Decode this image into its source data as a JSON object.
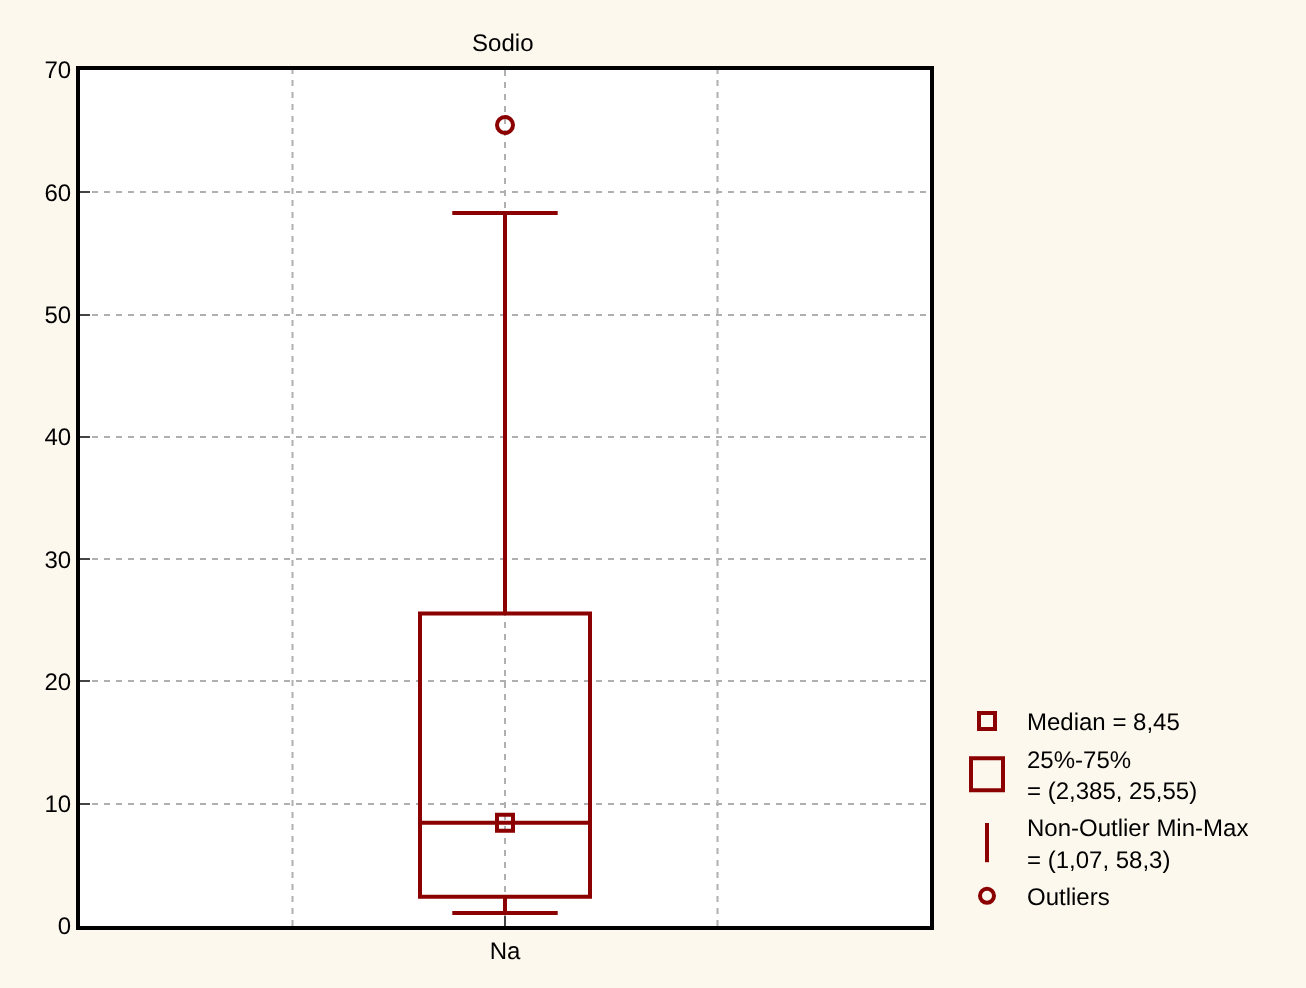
{
  "chart_data": {
    "type": "box",
    "title": "Sodio",
    "categories": [
      "Na"
    ],
    "series": [
      {
        "color": "#8b0000",
        "boxes": [
          {
            "low": 1.07,
            "q1": 2.385,
            "median": 8.45,
            "q3": 25.55,
            "high": 58.3,
            "outliers": [
              65.5
            ]
          }
        ]
      }
    ],
    "ylim": [
      0,
      70
    ],
    "yticks": [
      0,
      10,
      20,
      30,
      40,
      50,
      60,
      70
    ],
    "grid": true,
    "annotations": [
      "Median = 8,45",
      "25%-75%\n= (2,385, 25,55)",
      "Non-Outlier Min-Max\n= (1,07, 58,3)",
      "Outliers"
    ]
  }
}
